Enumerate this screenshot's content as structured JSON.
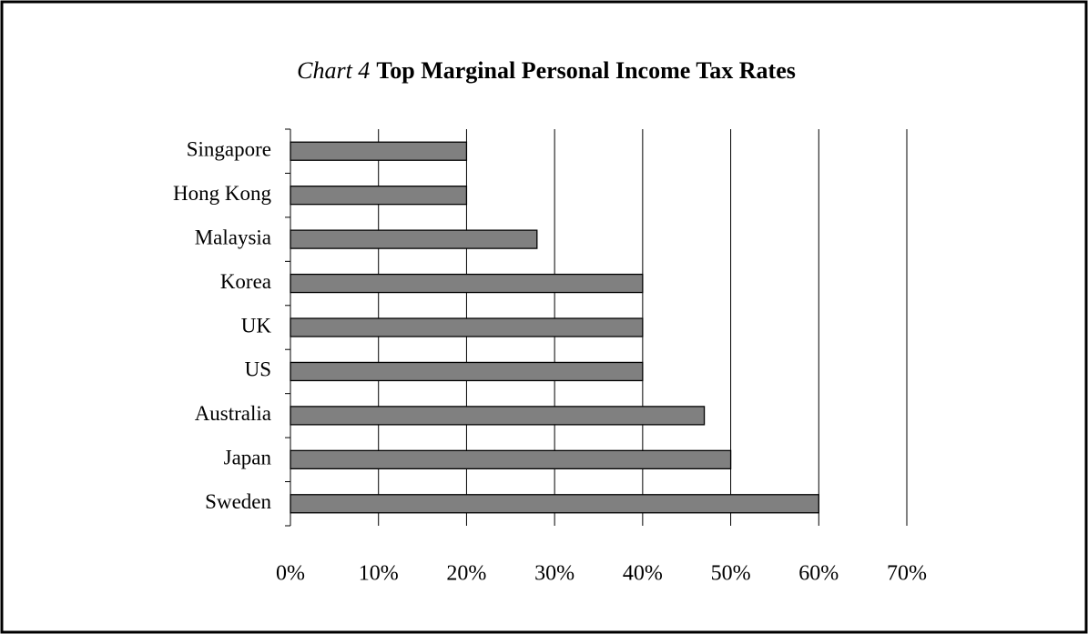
{
  "chart_data": {
    "type": "bar",
    "orientation": "horizontal",
    "title_label": "Chart 4",
    "title": "Top Marginal Personal Income Tax Rates",
    "categories": [
      "Singapore",
      "Hong Kong",
      "Malaysia",
      "Korea",
      "UK",
      "US",
      "Australia",
      "Japan",
      "Sweden"
    ],
    "values": [
      20,
      20,
      28,
      40,
      40,
      40,
      47,
      50,
      60
    ],
    "color": "#808080",
    "xlim": [
      0,
      70
    ],
    "xticks": [
      {
        "value": 0,
        "label": "0%"
      },
      {
        "value": 10,
        "label": "10%"
      },
      {
        "value": 20,
        "label": "20%"
      },
      {
        "value": 30,
        "label": "30%"
      },
      {
        "value": 40,
        "label": "40%"
      },
      {
        "value": 50,
        "label": "50%"
      },
      {
        "value": 60,
        "label": "60%"
      },
      {
        "value": 70,
        "label": "70%"
      }
    ],
    "grid": true
  }
}
